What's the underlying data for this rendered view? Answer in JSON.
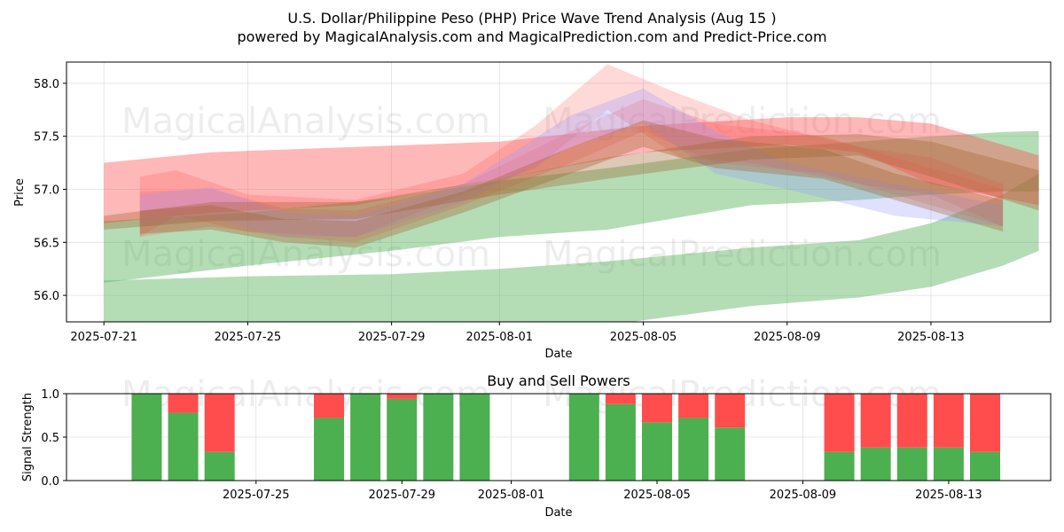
{
  "title_line1": "U.S. Dollar/Philippine Peso (PHP) Price Wave Trend Analysis (Aug 15 )",
  "title_line2": "powered by MagicalAnalysis.com and MagicalPrediction.com and Predict-Price.com",
  "watermarks": [
    "MagicalAnalysis.com",
    "MagicalPrediction.com"
  ],
  "colors": {
    "green_band": "#4caf50",
    "red_band": "#ff4d4d",
    "blue_band": "#9999ff",
    "brown_band": "#a0622d",
    "buy": "#4caf50",
    "sell": "#ff4d4d"
  },
  "chart_data": [
    {
      "type": "area",
      "xlabel": "Date",
      "ylabel": "Price",
      "ylim": [
        55.75,
        58.2
      ],
      "xlim": [
        "2025-07-21",
        "2025-08-16"
      ],
      "x_ticks": [
        "2025-07-21",
        "2025-07-25",
        "2025-07-29",
        "2025-08-01",
        "2025-08-05",
        "2025-08-09",
        "2025-08-13"
      ],
      "y_ticks": [
        56.0,
        56.5,
        57.0,
        57.5,
        58.0
      ],
      "grid": true,
      "green_bands": [
        {
          "x": [
            "2025-07-21",
            "2025-07-25",
            "2025-07-29",
            "2025-08-01",
            "2025-08-04",
            "2025-08-08",
            "2025-08-11",
            "2025-08-13",
            "2025-08-15",
            "2025-08-16"
          ],
          "upper": [
            56.7,
            56.78,
            56.92,
            57.08,
            57.2,
            57.38,
            57.45,
            57.5,
            57.54,
            57.55
          ],
          "lower": [
            56.12,
            56.28,
            56.42,
            56.55,
            56.62,
            56.85,
            56.9,
            56.95,
            56.98,
            56.98
          ]
        },
        {
          "x": [
            "2025-07-21",
            "2025-07-25",
            "2025-07-29",
            "2025-08-01",
            "2025-08-04",
            "2025-08-08",
            "2025-08-11",
            "2025-08-13",
            "2025-08-15",
            "2025-08-16"
          ],
          "upper": [
            56.14,
            56.18,
            56.2,
            56.25,
            56.32,
            56.45,
            56.52,
            56.68,
            56.95,
            57.15
          ],
          "lower": [
            55.72,
            55.72,
            55.72,
            55.72,
            55.72,
            55.9,
            55.98,
            56.08,
            56.28,
            56.42
          ]
        }
      ],
      "red_bands": [
        {
          "x": [
            "2025-07-21",
            "2025-07-24",
            "2025-07-28",
            "2025-08-01",
            "2025-08-05",
            "2025-08-09",
            "2025-08-11",
            "2025-08-13",
            "2025-08-16"
          ],
          "upper": [
            57.25,
            57.35,
            57.4,
            57.45,
            57.6,
            57.68,
            57.68,
            57.62,
            57.32
          ],
          "lower": [
            56.68,
            56.78,
            56.85,
            57.1,
            57.35,
            57.42,
            57.35,
            57.05,
            56.85
          ]
        },
        {
          "x": [
            "2025-07-22",
            "2025-07-23",
            "2025-07-25",
            "2025-07-28",
            "2025-07-31",
            "2025-08-02",
            "2025-08-04",
            "2025-08-06",
            "2025-08-08",
            "2025-08-11",
            "2025-08-13",
            "2025-08-15"
          ],
          "upper": [
            57.12,
            57.18,
            56.95,
            56.9,
            57.15,
            57.6,
            58.18,
            57.9,
            57.65,
            57.4,
            57.3,
            57.05
          ],
          "lower": [
            56.55,
            56.75,
            56.6,
            56.55,
            56.95,
            57.2,
            57.75,
            57.3,
            57.25,
            57.05,
            56.95,
            56.65
          ]
        },
        {
          "x": [
            "2025-07-22",
            "2025-07-24",
            "2025-07-26",
            "2025-07-28",
            "2025-07-31",
            "2025-08-03",
            "2025-08-05",
            "2025-08-07",
            "2025-08-10",
            "2025-08-12",
            "2025-08-15"
          ],
          "upper": [
            56.98,
            57.0,
            56.82,
            56.8,
            57.05,
            57.55,
            57.85,
            57.62,
            57.5,
            57.3,
            57.0
          ],
          "lower": [
            56.55,
            56.65,
            56.55,
            56.5,
            56.85,
            57.25,
            57.55,
            57.25,
            57.15,
            56.95,
            56.65
          ]
        }
      ],
      "blue_bands": [
        {
          "x": [
            "2025-07-22",
            "2025-07-24",
            "2025-07-26",
            "2025-07-28",
            "2025-07-31",
            "2025-08-03",
            "2025-08-05",
            "2025-08-07",
            "2025-08-09",
            "2025-08-12",
            "2025-08-15"
          ],
          "upper": [
            56.95,
            57.02,
            56.78,
            56.75,
            57.05,
            57.7,
            57.95,
            57.55,
            57.25,
            57.05,
            56.85
          ],
          "lower": [
            56.65,
            56.72,
            56.55,
            56.55,
            56.88,
            57.4,
            57.62,
            57.15,
            57.0,
            56.75,
            56.65
          ]
        }
      ],
      "brown_bands": [
        {
          "x": [
            "2025-07-21",
            "2025-07-24",
            "2025-07-28",
            "2025-08-01",
            "2025-08-04",
            "2025-08-08",
            "2025-08-11",
            "2025-08-13",
            "2025-08-16"
          ],
          "upper": [
            56.75,
            56.88,
            56.88,
            57.1,
            57.3,
            57.5,
            57.52,
            57.45,
            57.18
          ],
          "lower": [
            56.62,
            56.7,
            56.72,
            56.95,
            57.1,
            57.28,
            57.32,
            57.12,
            56.8
          ]
        },
        {
          "x": [
            "2025-07-22",
            "2025-07-24",
            "2025-07-26",
            "2025-07-28",
            "2025-07-31",
            "2025-08-03",
            "2025-08-05",
            "2025-08-07",
            "2025-08-10",
            "2025-08-12",
            "2025-08-15"
          ],
          "upper": [
            56.8,
            56.85,
            56.72,
            56.7,
            56.98,
            57.4,
            57.65,
            57.48,
            57.38,
            57.15,
            56.9
          ],
          "lower": [
            56.58,
            56.62,
            56.5,
            56.45,
            56.78,
            57.15,
            57.4,
            57.2,
            57.1,
            56.9,
            56.6
          ]
        }
      ]
    },
    {
      "type": "bar",
      "title": "Buy and Sell Powers",
      "xlabel": "Date",
      "ylabel": "Signal Strength",
      "ylim": [
        0,
        1
      ],
      "y_ticks": [
        0.0,
        0.5,
        1.0
      ],
      "x_ticks": [
        "2025-07-25",
        "2025-07-29",
        "2025-08-01",
        "2025-08-05",
        "2025-08-09",
        "2025-08-13"
      ],
      "series": [
        {
          "name": "Buy",
          "color": "#4caf50"
        },
        {
          "name": "Sell",
          "color": "#ff4d4d"
        }
      ],
      "bars": [
        {
          "date": "2025-07-22",
          "buy": 1.0
        },
        {
          "date": "2025-07-23",
          "buy": 0.78
        },
        {
          "date": "2025-07-24",
          "buy": 0.33
        },
        {
          "date": "2025-07-27",
          "buy": 0.72
        },
        {
          "date": "2025-07-28",
          "buy": 1.0
        },
        {
          "date": "2025-07-29",
          "buy": 0.94
        },
        {
          "date": "2025-07-30",
          "buy": 1.0
        },
        {
          "date": "2025-07-31",
          "buy": 1.0
        },
        {
          "date": "2025-08-03",
          "buy": 1.0
        },
        {
          "date": "2025-08-04",
          "buy": 0.88
        },
        {
          "date": "2025-08-05",
          "buy": 0.67
        },
        {
          "date": "2025-08-06",
          "buy": 0.72
        },
        {
          "date": "2025-08-07",
          "buy": 0.61
        },
        {
          "date": "2025-08-10",
          "buy": 0.33
        },
        {
          "date": "2025-08-11",
          "buy": 0.38
        },
        {
          "date": "2025-08-12",
          "buy": 0.38
        },
        {
          "date": "2025-08-13",
          "buy": 0.38
        },
        {
          "date": "2025-08-14",
          "buy": 0.33
        }
      ]
    }
  ]
}
